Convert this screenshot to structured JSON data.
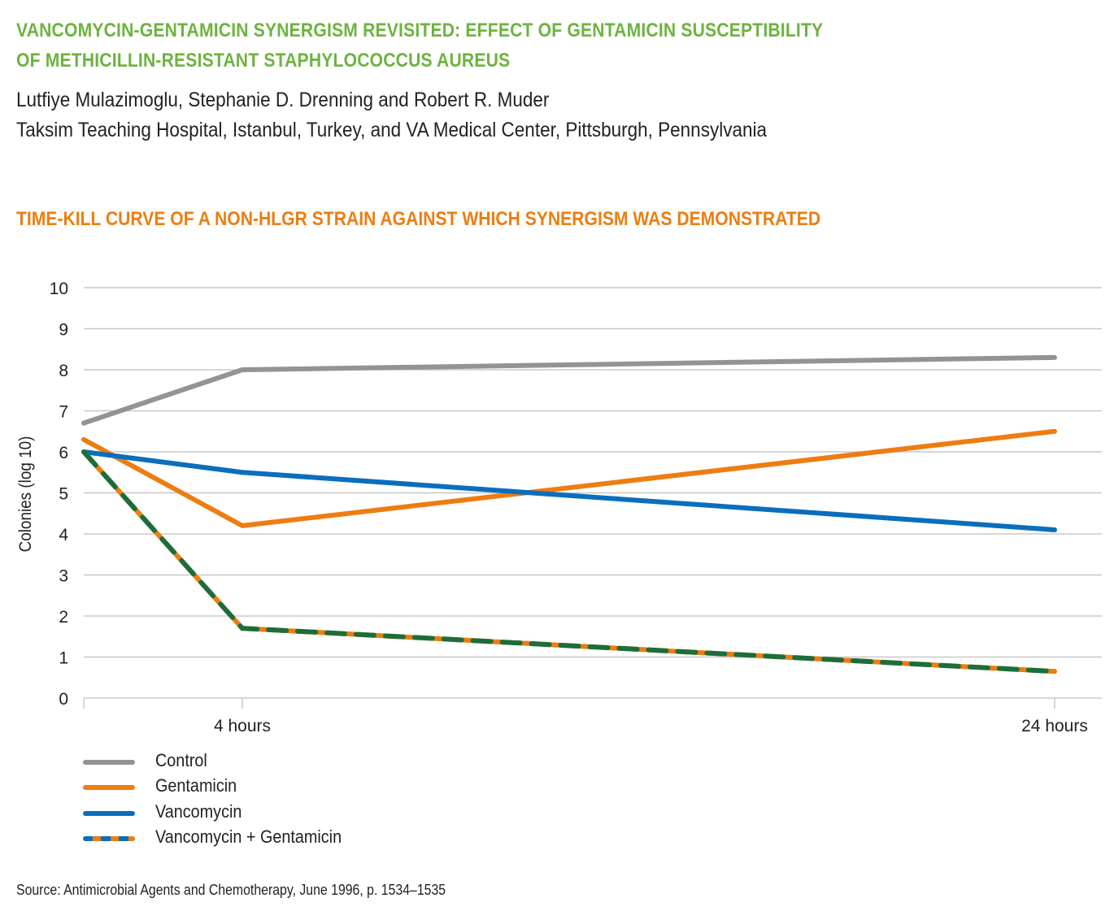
{
  "header": {
    "title_line1": "VANCOMYCIN-GENTAMICIN SYNERGISM REVISITED: EFFECT OF GENTAMICIN SUSCEPTIBILITY",
    "title_line2": "OF METHICILLIN-RESISTANT STAPHYLOCOCCUS AUREUS",
    "authors": "Lutfiye Mulazimoglu, Stephanie D. Drenning and Robert R. Muder",
    "affiliation": "Taksim Teaching Hospital, Istanbul, Turkey, and VA Medical Center, Pittsburgh, Pennsylvania"
  },
  "colors": {
    "title_green": "#6db33f",
    "chart_title_orange": "#ed7d11",
    "control": "#939393",
    "gentamicin": "#ed7d11",
    "vancomycin": "#0a6ebd",
    "combo_chart_dash": "#1b6e3a",
    "gridline": "#c8c8c8"
  },
  "chart_data": {
    "type": "line",
    "title": "TIME-KILL CURVE OF A NON-HLGR STRAIN AGAINST WHICH SYNERGISM WAS DEMONSTRATED",
    "xlabel": "",
    "ylabel": "Colonies (log 10)",
    "x": [
      "0",
      "4 hours",
      "24 hours"
    ],
    "x_hours": [
      0,
      4,
      24
    ],
    "x_tick_labels": [
      "4 hours",
      "24 hours"
    ],
    "ylim": [
      0,
      10
    ],
    "y_ticks": [
      "0",
      "1",
      "2",
      "3",
      "4",
      "5",
      "6",
      "7",
      "8",
      "9",
      "10"
    ],
    "grid": true,
    "legend_position": "bottom-left",
    "series": [
      {
        "name": "Control",
        "values": [
          6.7,
          8.0,
          8.3
        ],
        "style": "solid"
      },
      {
        "name": "Gentamicin",
        "values": [
          6.3,
          4.2,
          6.5
        ],
        "style": "solid"
      },
      {
        "name": "Vancomycin",
        "values": [
          6.0,
          5.5,
          4.1
        ],
        "style": "solid"
      },
      {
        "name": "Vancomycin + Gentamicin",
        "values": [
          6.0,
          1.7,
          0.65
        ],
        "style": "dashed"
      }
    ]
  },
  "source": "Source: Antimicrobial Agents and Chemotherapy, June 1996, p. 1534–1535"
}
